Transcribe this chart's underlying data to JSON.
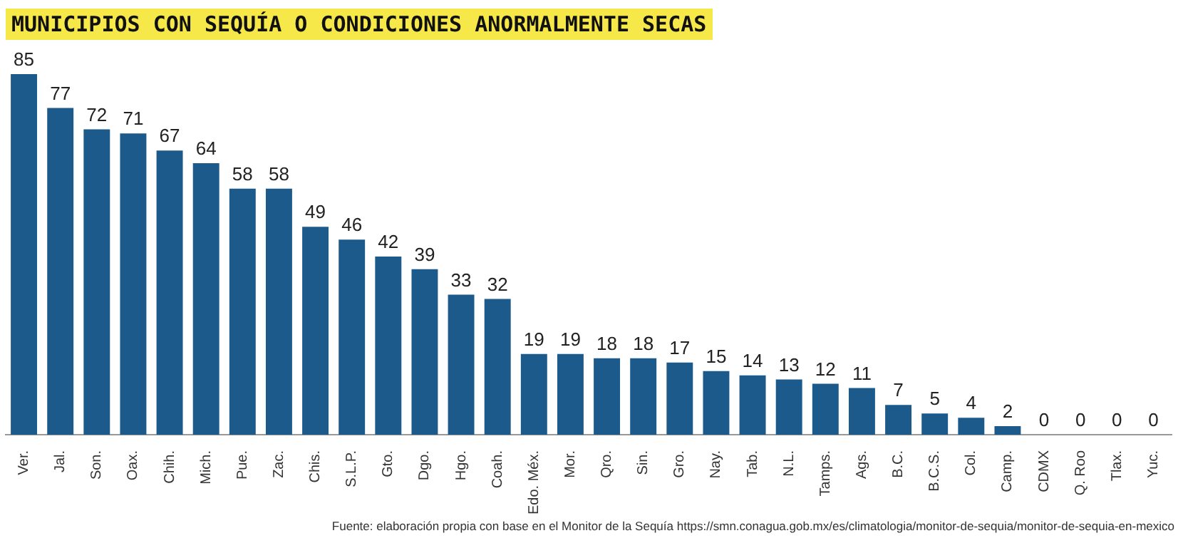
{
  "chart_data": {
    "type": "bar",
    "title": "MUNICIPIOS CON SEQUÍA O CONDICIONES ANORMALMENTE SECAS",
    "categories": [
      "Ver.",
      "Jal.",
      "Son.",
      "Oax.",
      "Chih.",
      "Mich.",
      "Pue.",
      "Zac.",
      "Chis.",
      "S.L.P.",
      "Gto.",
      "Dgo.",
      "Hgo.",
      "Coah.",
      "Edo. Méx.",
      "Mor.",
      "Qro.",
      "Sin.",
      "Gro.",
      "Nay.",
      "Tab.",
      "N.L.",
      "Tamps.",
      "Ags.",
      "B.C.",
      "B.C.S.",
      "Col.",
      "Camp.",
      "CDMX",
      "Q. Roo",
      "Tlax.",
      "Yuc."
    ],
    "values": [
      85,
      77,
      72,
      71,
      67,
      64,
      58,
      58,
      49,
      46,
      42,
      39,
      33,
      32,
      19,
      19,
      18,
      18,
      17,
      15,
      14,
      13,
      12,
      11,
      7,
      5,
      4,
      2,
      0,
      0,
      0,
      0
    ],
    "color": "#1d5a8c",
    "ylim": [
      0,
      85
    ],
    "data_labels": true,
    "annotations": [
      "Fuente: elaboración propia con base en el Monitor de la Sequía https://smn.conagua.gob.mx/es/climatologia/monitor-de-sequia/monitor-de-sequia-en-mexico"
    ]
  }
}
